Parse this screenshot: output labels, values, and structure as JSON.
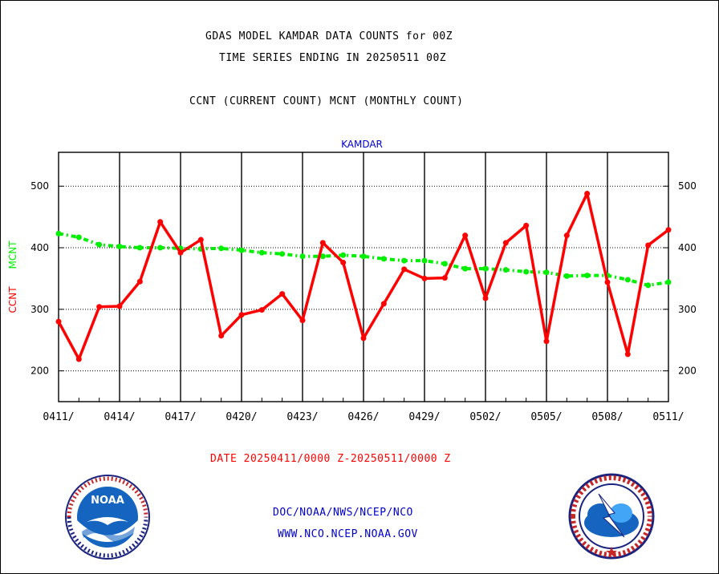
{
  "titles": {
    "line1": "GDAS MODEL KAMDAR DATA COUNTS for 00Z",
    "line2": "TIME SERIES ENDING IN 20250511 00Z",
    "line3": "CCNT (CURRENT COUNT) MCNT (MONTHLY COUNT)"
  },
  "footer": {
    "date_range": "DATE 20250411/0000 Z-20250511/0000 Z",
    "org_path": "DOC/NOAA/NWS/NCEP/NCO",
    "website": "WWW.NCO.NCEP.NOAA.GOV"
  },
  "logos": {
    "left": {
      "icon": "noaa-logo",
      "text": "NOAA"
    },
    "right": {
      "icon": "national-weather-service-logo"
    }
  },
  "colors": {
    "ccnt": "#ff0000",
    "mcnt": "#00ee00",
    "station": "#0000cc"
  },
  "chart_data": {
    "type": "line",
    "title": "KAMDAR",
    "ylabel_ccnt": "CCNT",
    "ylabel_mcnt": "MCNT",
    "ylim": [
      150,
      555
    ],
    "yticks": [
      200,
      300,
      400,
      500
    ],
    "grid": true,
    "x_tick_labels": [
      "0411/",
      "0414/",
      "0417/",
      "0420/",
      "0423/",
      "0426/",
      "0429/",
      "0502/",
      "0505/",
      "0508/",
      "0511/"
    ],
    "x": [
      "0411",
      "0412",
      "0413",
      "0414",
      "0415",
      "0416",
      "0417",
      "0418",
      "0419",
      "0420",
      "0421",
      "0422",
      "0423",
      "0424",
      "0425",
      "0426",
      "0427",
      "0428",
      "0429",
      "0430",
      "0501",
      "0502",
      "0503",
      "0504",
      "0505",
      "0506",
      "0507",
      "0508",
      "0509",
      "0510",
      "0511"
    ],
    "series": [
      {
        "name": "CCNT",
        "values": [
          280,
          219,
          304,
          305,
          345,
          442,
          392,
          413,
          257,
          291,
          299,
          325,
          282,
          408,
          376,
          253,
          309,
          365,
          350,
          351,
          420,
          318,
          408,
          436,
          248,
          420,
          488,
          344,
          227,
          404,
          429
        ]
      },
      {
        "name": "MCNT",
        "values": [
          423,
          417,
          405,
          402,
          400,
          400,
          399,
          398,
          399,
          396,
          392,
          390,
          386,
          386,
          388,
          386,
          382,
          379,
          379,
          374,
          366,
          366,
          364,
          361,
          360,
          354,
          355,
          355,
          348,
          339,
          344
        ]
      }
    ]
  }
}
